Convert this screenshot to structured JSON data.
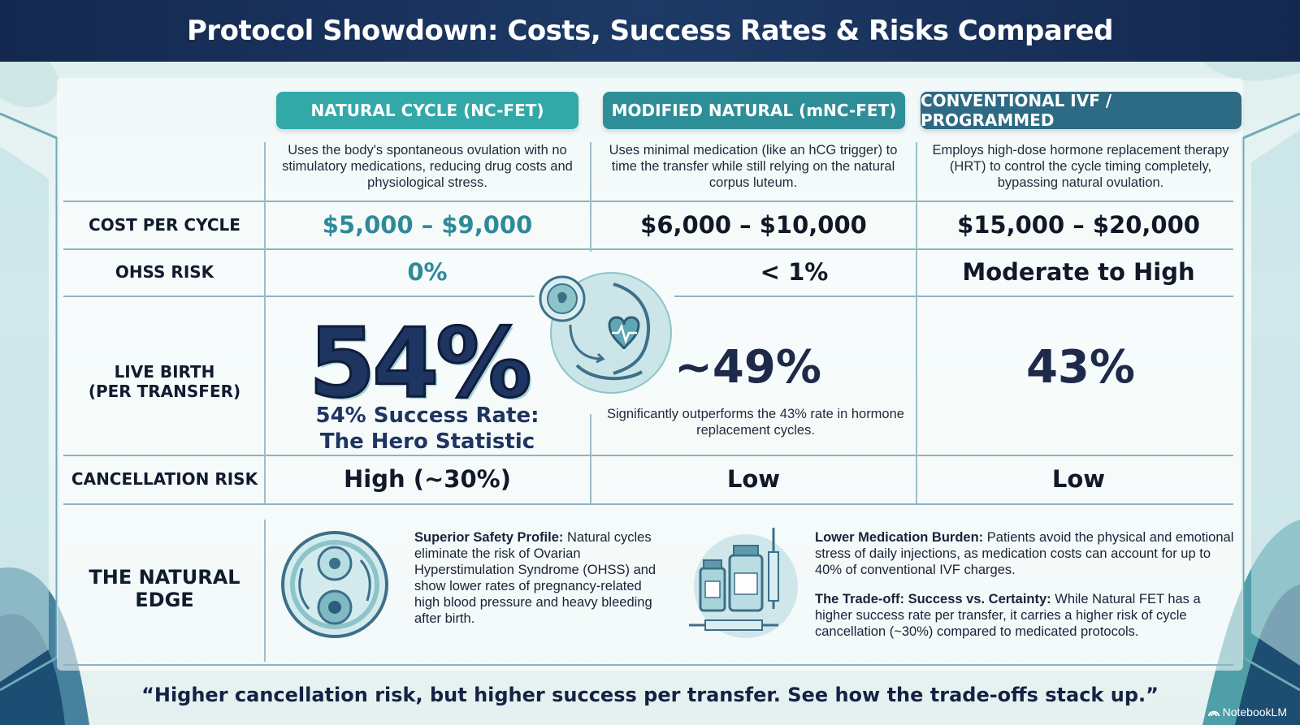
{
  "title": "Protocol Showdown: Costs, Success Rates & Risks Compared",
  "columns": [
    {
      "header": "NATURAL CYCLE (NC-FET)",
      "description": "Uses the body's spontaneous ovulation with no stimulatory medications, reducing drug costs and physiological stress."
    },
    {
      "header": "MODIFIED NATURAL (mNC-FET)",
      "description": "Uses minimal medication (like an hCG trigger) to time the transfer while still relying on the natural corpus luteum."
    },
    {
      "header": "CONVENTIONAL IVF / PROGRAMMED",
      "description": "Employs high-dose hormone replacement therapy (HRT) to control the cycle timing completely, bypassing natural ovulation."
    }
  ],
  "rows": {
    "cost": {
      "label": "COST PER CYCLE",
      "values": [
        "$5,000 – $9,000",
        "$6,000 – $10,000",
        "$15,000 – $20,000"
      ]
    },
    "ohss": {
      "label": "OHSS RISK",
      "values": [
        "0%",
        "< 1%",
        "Moderate to High"
      ]
    },
    "live_birth": {
      "label_line1": "LIVE BIRTH",
      "label_line2": "(PER TRANSFER)",
      "hero_value": "54%",
      "hero_sub_line1": "54% Success Rate:",
      "hero_sub_line2": "The Hero Statistic",
      "mnc_value": "~49%",
      "mnc_note": "Significantly outperforms the 43% rate in hormone replacement cycles.",
      "ivf_value": "43%"
    },
    "cancellation": {
      "label": "CANCELLATION RISK",
      "values": [
        "High (~30%)",
        "Low",
        "Low"
      ]
    }
  },
  "natural_edge": {
    "label_line1": "THE NATURAL",
    "label_line2": "EDGE",
    "safety_title": "Superior Safety Profile:",
    "safety_text": " Natural cycles eliminate the risk of Ovarian Hyperstimulation Syndrome (OHSS) and show lower rates of pregnancy-related high blood pressure and heavy bleeding after birth.",
    "medication_title": "Lower Medication Burden:",
    "medication_text": " Patients avoid the physical and emotional stress of daily injections, as medication costs can account for up to 40% of conventional IVF charges.",
    "tradeoff_title": "The Trade-off: Success vs. Certainty:",
    "tradeoff_text": " While Natural FET has a higher success rate per transfer, it carries a higher risk of cycle cancellation (~30%) compared to medicated protocols."
  },
  "quote": "“Higher cancellation risk, but higher success per transfer. See how the trade-offs stack up.”",
  "brand": "NotebookLM",
  "colors": {
    "header_bg": "#14284f",
    "teal_accent": "#33a8a8",
    "navy_text": "#1e3461"
  }
}
